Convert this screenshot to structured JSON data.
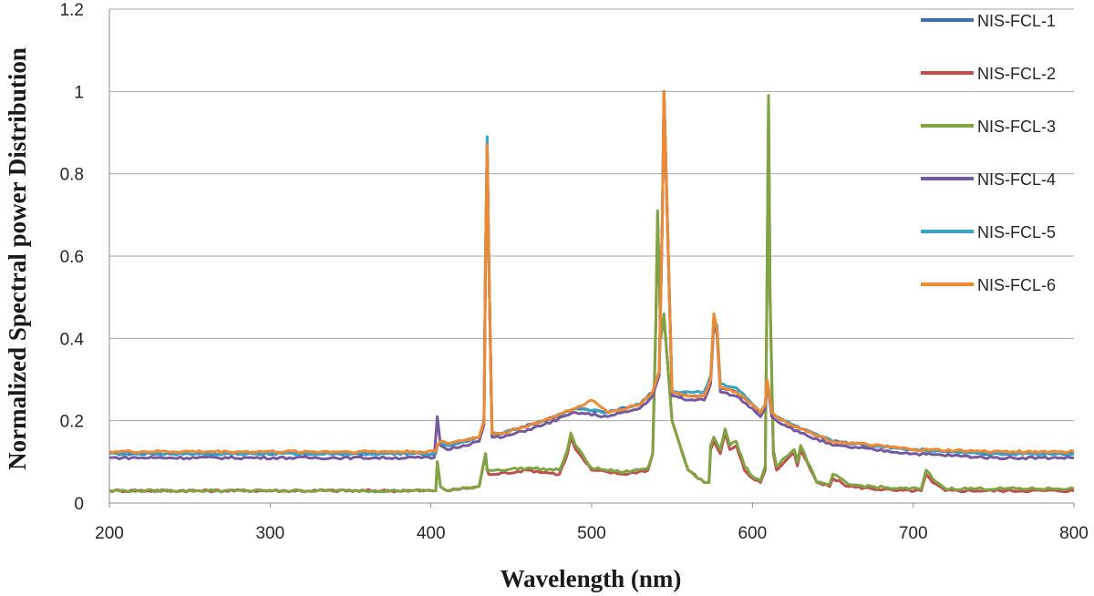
{
  "chart_data": {
    "type": "line",
    "xlabel": "Wavelength (nm)",
    "ylabel": "Normalized Spectral  power Distribution",
    "xlim": [
      200,
      800
    ],
    "ylim": [
      0,
      1.2
    ],
    "x_ticks": [
      "200",
      "300",
      "400",
      "500",
      "600",
      "700",
      "800"
    ],
    "y_ticks": [
      "0",
      "0.2",
      "0.4",
      "0.6",
      "0.8",
      "1",
      "1.2"
    ],
    "grid": "horizontal",
    "legend_position": "right",
    "series": [
      {
        "name": "NIS-FCL-1",
        "color": "#3e6eb0",
        "x": [
          200,
          403,
          404,
          406,
          410,
          430,
          433,
          434,
          435,
          436,
          438,
          445,
          470,
          490,
          510,
          530,
          538,
          542,
          544,
          545,
          547,
          550,
          560,
          570,
          574,
          576,
          578,
          580,
          590,
          600,
          605,
          608,
          609,
          610,
          612,
          615,
          620,
          630,
          650,
          700,
          750,
          800
        ],
        "y": [
          0.12,
          0.12,
          0.14,
          0.15,
          0.14,
          0.16,
          0.2,
          0.6,
          0.88,
          0.6,
          0.17,
          0.17,
          0.2,
          0.23,
          0.22,
          0.24,
          0.27,
          0.32,
          0.7,
          1.0,
          0.7,
          0.27,
          0.26,
          0.26,
          0.3,
          0.45,
          0.42,
          0.28,
          0.27,
          0.24,
          0.22,
          0.24,
          0.3,
          0.28,
          0.22,
          0.21,
          0.2,
          0.18,
          0.15,
          0.13,
          0.12,
          0.12
        ]
      },
      {
        "name": "NIS-FCL-2",
        "color": "#c0504d",
        "x": [
          200,
          403,
          404,
          406,
          410,
          430,
          434,
          435,
          436,
          440,
          460,
          480,
          485,
          487,
          490,
          500,
          520,
          535,
          538,
          540,
          541,
          543,
          545,
          547,
          550,
          560,
          570,
          573,
          574,
          576,
          580,
          583,
          586,
          590,
          595,
          600,
          605,
          608,
          609,
          610,
          611,
          613,
          615,
          620,
          626,
          628,
          630,
          640,
          648,
          650,
          660,
          690,
          705,
          708,
          712,
          720,
          800
        ],
        "y": [
          0.03,
          0.03,
          0.1,
          0.04,
          0.03,
          0.04,
          0.12,
          0.08,
          0.07,
          0.07,
          0.08,
          0.07,
          0.12,
          0.16,
          0.13,
          0.08,
          0.07,
          0.08,
          0.12,
          0.45,
          0.7,
          0.4,
          0.45,
          0.35,
          0.2,
          0.08,
          0.05,
          0.05,
          0.13,
          0.15,
          0.12,
          0.17,
          0.13,
          0.14,
          0.08,
          0.06,
          0.05,
          0.08,
          0.5,
          0.98,
          0.5,
          0.12,
          0.08,
          0.1,
          0.12,
          0.09,
          0.13,
          0.05,
          0.04,
          0.06,
          0.04,
          0.03,
          0.03,
          0.07,
          0.05,
          0.03,
          0.03
        ]
      },
      {
        "name": "NIS-FCL-3",
        "color": "#7fa444",
        "x": [
          200,
          403,
          404,
          406,
          410,
          430,
          434,
          435,
          436,
          440,
          460,
          480,
          485,
          487,
          490,
          500,
          520,
          535,
          538,
          540,
          541,
          543,
          545,
          547,
          550,
          560,
          570,
          573,
          574,
          576,
          580,
          583,
          586,
          590,
          595,
          600,
          605,
          608,
          609,
          610,
          611,
          613,
          615,
          620,
          626,
          628,
          630,
          640,
          648,
          650,
          660,
          690,
          705,
          708,
          712,
          720,
          800
        ],
        "y": [
          0.03,
          0.03,
          0.1,
          0.04,
          0.03,
          0.04,
          0.12,
          0.08,
          0.08,
          0.08,
          0.085,
          0.08,
          0.13,
          0.17,
          0.14,
          0.085,
          0.075,
          0.085,
          0.12,
          0.45,
          0.71,
          0.4,
          0.46,
          0.35,
          0.2,
          0.08,
          0.05,
          0.05,
          0.14,
          0.16,
          0.13,
          0.18,
          0.14,
          0.15,
          0.09,
          0.065,
          0.055,
          0.09,
          0.5,
          0.99,
          0.5,
          0.13,
          0.09,
          0.11,
          0.13,
          0.1,
          0.14,
          0.05,
          0.045,
          0.07,
          0.045,
          0.035,
          0.035,
          0.08,
          0.06,
          0.035,
          0.035
        ]
      },
      {
        "name": "NIS-FCL-4",
        "color": "#7559a0",
        "x": [
          200,
          402,
          404,
          406,
          410,
          430,
          433,
          434,
          435,
          436,
          438,
          445,
          470,
          490,
          510,
          530,
          538,
          542,
          544,
          545,
          547,
          550,
          560,
          570,
          574,
          576,
          578,
          580,
          590,
          600,
          605,
          608,
          609,
          610,
          612,
          615,
          620,
          630,
          650,
          700,
          750,
          800
        ],
        "y": [
          0.11,
          0.11,
          0.21,
          0.14,
          0.13,
          0.15,
          0.19,
          0.6,
          0.87,
          0.6,
          0.16,
          0.16,
          0.19,
          0.22,
          0.21,
          0.23,
          0.26,
          0.31,
          0.7,
          1.0,
          0.7,
          0.26,
          0.25,
          0.25,
          0.29,
          0.44,
          0.41,
          0.27,
          0.26,
          0.23,
          0.21,
          0.23,
          0.29,
          0.27,
          0.21,
          0.2,
          0.19,
          0.17,
          0.14,
          0.12,
          0.11,
          0.11
        ]
      },
      {
        "name": "NIS-FCL-5",
        "color": "#3ba2c4",
        "x": [
          200,
          403,
          404,
          406,
          410,
          430,
          433,
          434,
          435,
          436,
          438,
          445,
          470,
          490,
          510,
          530,
          538,
          542,
          544,
          545,
          547,
          550,
          560,
          570,
          574,
          576,
          578,
          580,
          590,
          600,
          605,
          608,
          609,
          610,
          612,
          615,
          620,
          630,
          650,
          700,
          750,
          800
        ],
        "y": [
          0.12,
          0.12,
          0.14,
          0.15,
          0.14,
          0.16,
          0.2,
          0.6,
          0.89,
          0.6,
          0.17,
          0.17,
          0.2,
          0.23,
          0.22,
          0.24,
          0.27,
          0.32,
          0.7,
          1.0,
          0.7,
          0.27,
          0.27,
          0.27,
          0.31,
          0.45,
          0.43,
          0.29,
          0.28,
          0.24,
          0.22,
          0.24,
          0.3,
          0.28,
          0.22,
          0.21,
          0.2,
          0.18,
          0.15,
          0.13,
          0.12,
          0.12
        ]
      },
      {
        "name": "NIS-FCL-6",
        "color": "#ef8a32",
        "x": [
          200,
          403,
          404,
          406,
          410,
          430,
          433,
          434,
          435,
          436,
          438,
          445,
          470,
          490,
          500,
          510,
          530,
          538,
          542,
          544,
          545,
          547,
          550,
          560,
          570,
          574,
          576,
          578,
          580,
          590,
          600,
          605,
          608,
          609,
          610,
          612,
          615,
          620,
          630,
          650,
          700,
          750,
          800
        ],
        "y": [
          0.125,
          0.125,
          0.14,
          0.15,
          0.145,
          0.16,
          0.2,
          0.6,
          0.87,
          0.6,
          0.17,
          0.17,
          0.2,
          0.23,
          0.25,
          0.22,
          0.24,
          0.27,
          0.32,
          0.7,
          1.0,
          0.7,
          0.27,
          0.26,
          0.26,
          0.3,
          0.46,
          0.42,
          0.28,
          0.27,
          0.24,
          0.22,
          0.24,
          0.3,
          0.28,
          0.22,
          0.21,
          0.2,
          0.18,
          0.15,
          0.13,
          0.125,
          0.125
        ]
      }
    ]
  }
}
